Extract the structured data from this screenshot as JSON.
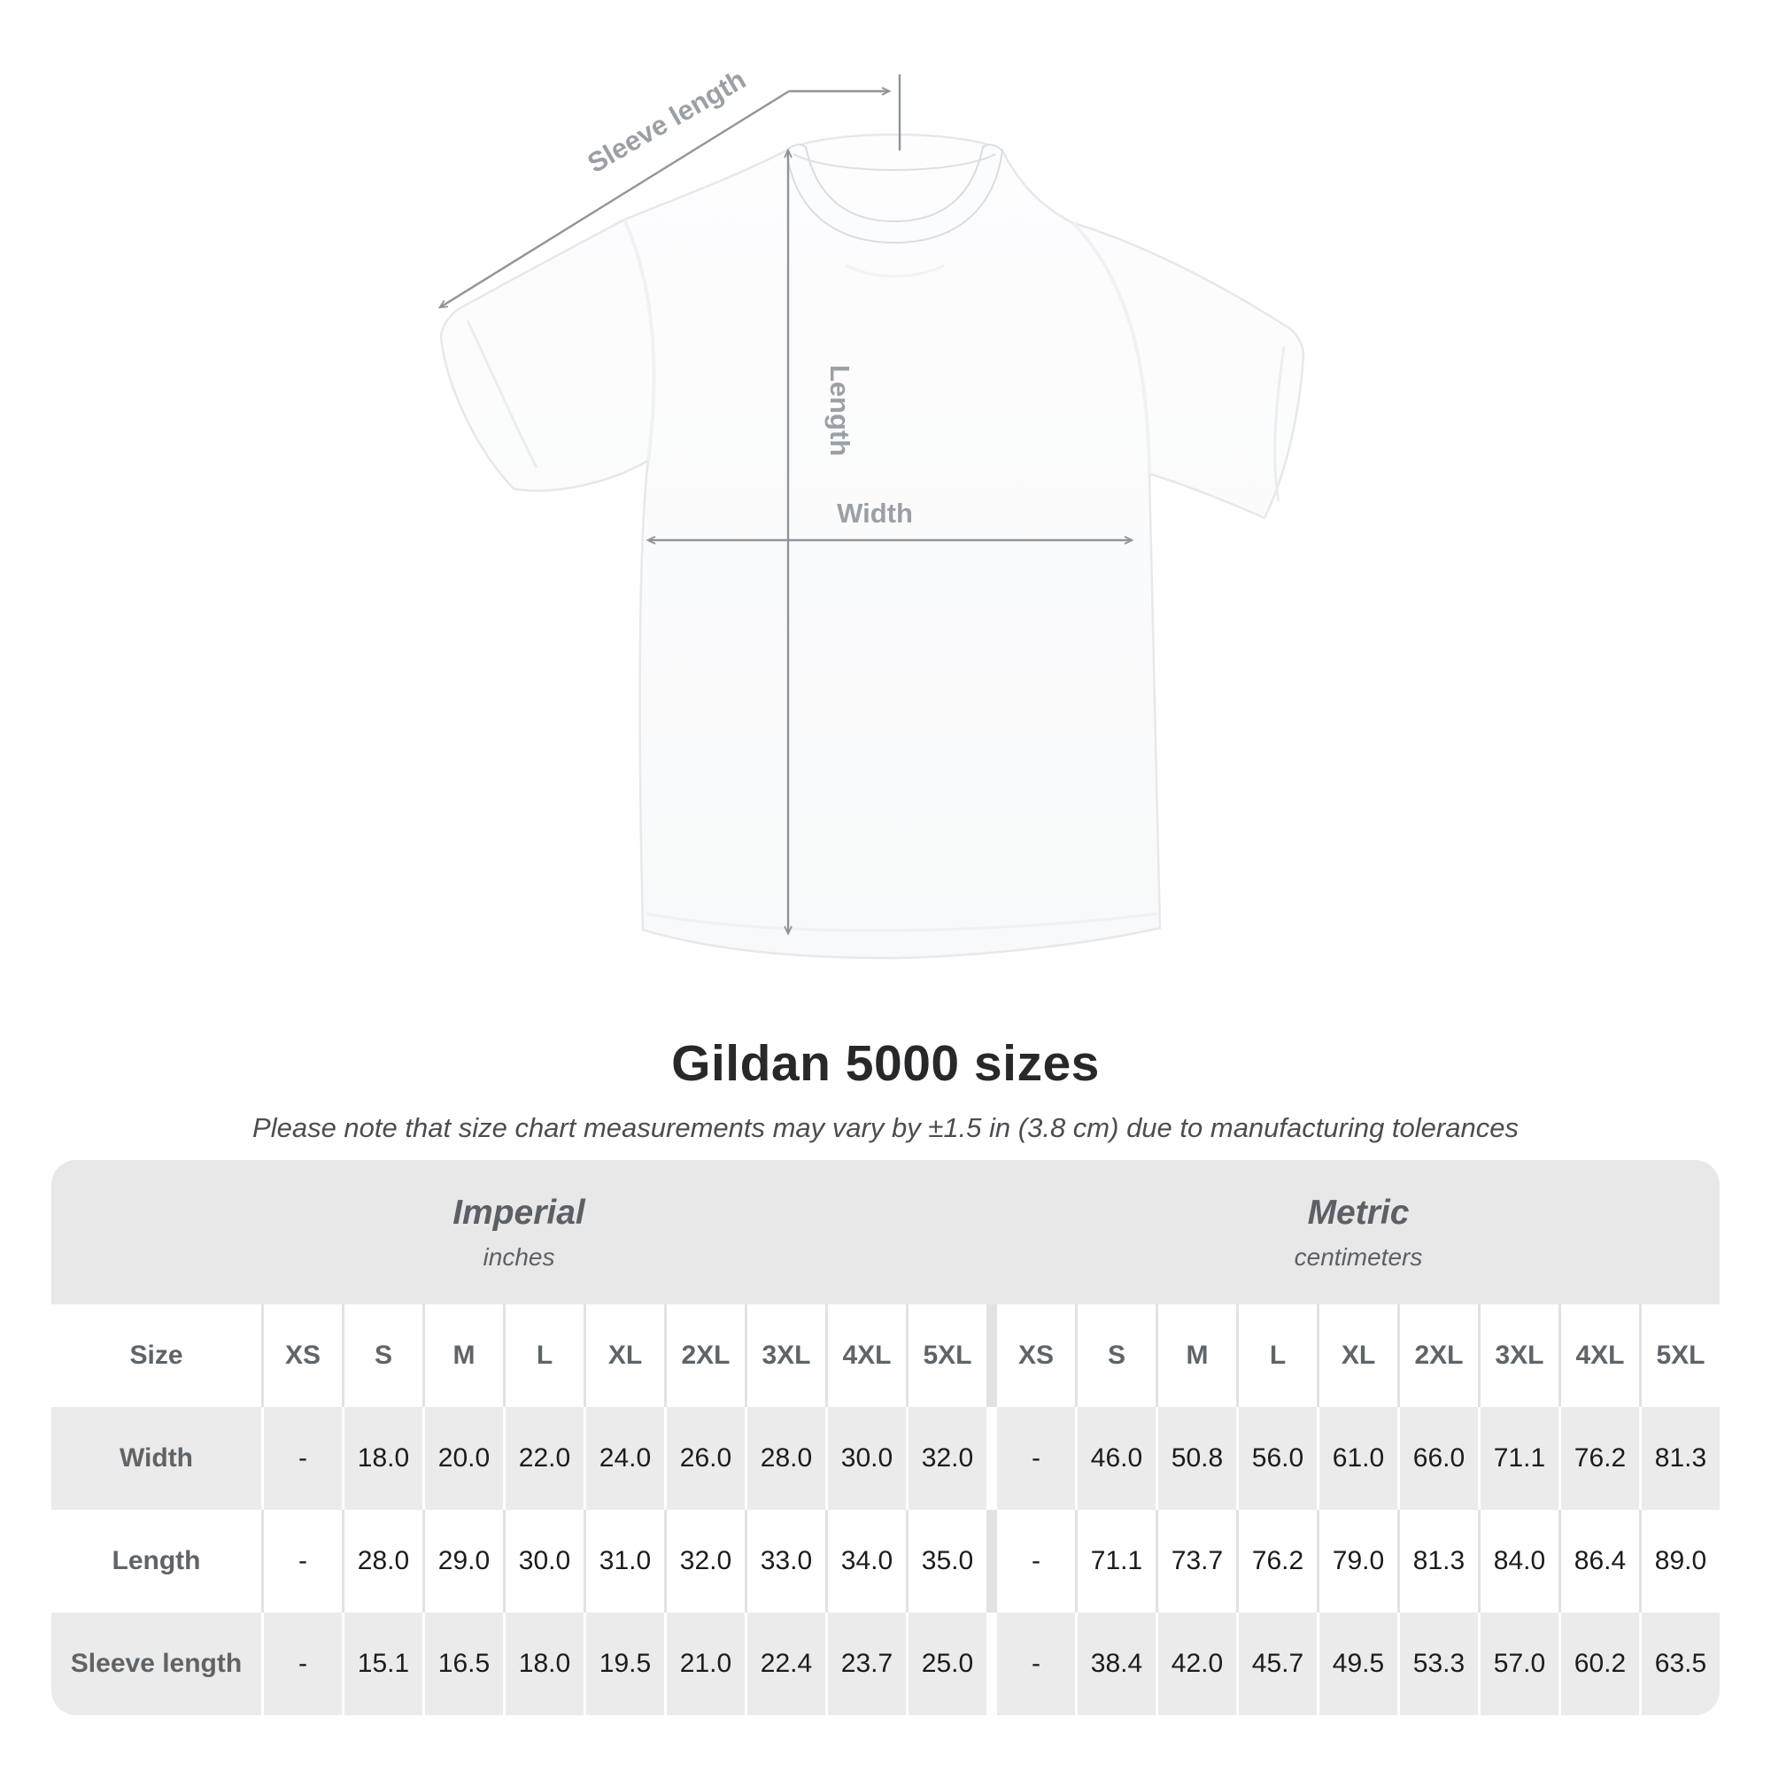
{
  "title": "Gildan 5000 sizes",
  "subtitle": "Please note that size chart measurements may vary by ±1.5 in (3.8 cm) due to manufacturing tolerances",
  "diagram": {
    "sleeve_length_label": "Sleeve length",
    "length_label": "Length",
    "width_label": "Width"
  },
  "table": {
    "size_header": "Size",
    "sections": [
      {
        "name": "Imperial",
        "unit": "inches"
      },
      {
        "name": "Metric",
        "unit": "centimeters"
      }
    ],
    "sizes": [
      "XS",
      "S",
      "M",
      "L",
      "XL",
      "2XL",
      "3XL",
      "4XL",
      "5XL"
    ],
    "rows": [
      {
        "label": "Width",
        "imperial": [
          "-",
          "18.0",
          "20.0",
          "22.0",
          "24.0",
          "26.0",
          "28.0",
          "30.0",
          "32.0"
        ],
        "metric": [
          "-",
          "46.0",
          "50.8",
          "56.0",
          "61.0",
          "66.0",
          "71.1",
          "76.2",
          "81.3"
        ]
      },
      {
        "label": "Length",
        "imperial": [
          "-",
          "28.0",
          "29.0",
          "30.0",
          "31.0",
          "32.0",
          "33.0",
          "34.0",
          "35.0"
        ],
        "metric": [
          "-",
          "71.1",
          "73.7",
          "76.2",
          "79.0",
          "81.3",
          "84.0",
          "86.4",
          "89.0"
        ]
      },
      {
        "label": "Sleeve length",
        "imperial": [
          "-",
          "15.1",
          "16.5",
          "18.0",
          "19.5",
          "21.0",
          "22.4",
          "23.7",
          "25.0"
        ],
        "metric": [
          "-",
          "38.4",
          "42.0",
          "45.7",
          "49.5",
          "53.3",
          "57.0",
          "60.2",
          "63.5"
        ]
      }
    ]
  },
  "chart_data": {
    "type": "table",
    "title": "Gildan 5000 sizes",
    "note": "Measurements may vary by ±1.5 in (3.8 cm) due to manufacturing tolerances",
    "column_groups": [
      {
        "group": "Imperial (inches)",
        "columns": [
          "XS",
          "S",
          "M",
          "L",
          "XL",
          "2XL",
          "3XL",
          "4XL",
          "5XL"
        ]
      },
      {
        "group": "Metric (centimeters)",
        "columns": [
          "XS",
          "S",
          "M",
          "L",
          "XL",
          "2XL",
          "3XL",
          "4XL",
          "5XL"
        ]
      }
    ],
    "rows": [
      {
        "measurement": "Width",
        "imperial_in": [
          null,
          18.0,
          20.0,
          22.0,
          24.0,
          26.0,
          28.0,
          30.0,
          32.0
        ],
        "metric_cm": [
          null,
          46.0,
          50.8,
          56.0,
          61.0,
          66.0,
          71.1,
          76.2,
          81.3
        ]
      },
      {
        "measurement": "Length",
        "imperial_in": [
          null,
          28.0,
          29.0,
          30.0,
          31.0,
          32.0,
          33.0,
          34.0,
          35.0
        ],
        "metric_cm": [
          null,
          71.1,
          73.7,
          76.2,
          79.0,
          81.3,
          84.0,
          86.4,
          89.0
        ]
      },
      {
        "measurement": "Sleeve length",
        "imperial_in": [
          null,
          15.1,
          16.5,
          18.0,
          19.5,
          21.0,
          22.4,
          23.7,
          25.0
        ],
        "metric_cm": [
          null,
          38.4,
          42.0,
          45.7,
          49.5,
          53.3,
          57.0,
          60.2,
          63.5
        ]
      }
    ]
  },
  "colors": {
    "band_gray": "#e8e8e9",
    "row_gray": "#ebebec",
    "divider_gray": "#e2e2e4",
    "header_text": "#5f6468",
    "data_text": "#1b1c1e",
    "dimension_line": "#8f959a",
    "dimension_label": "#9aa0a5",
    "title_text": "#27282a"
  }
}
